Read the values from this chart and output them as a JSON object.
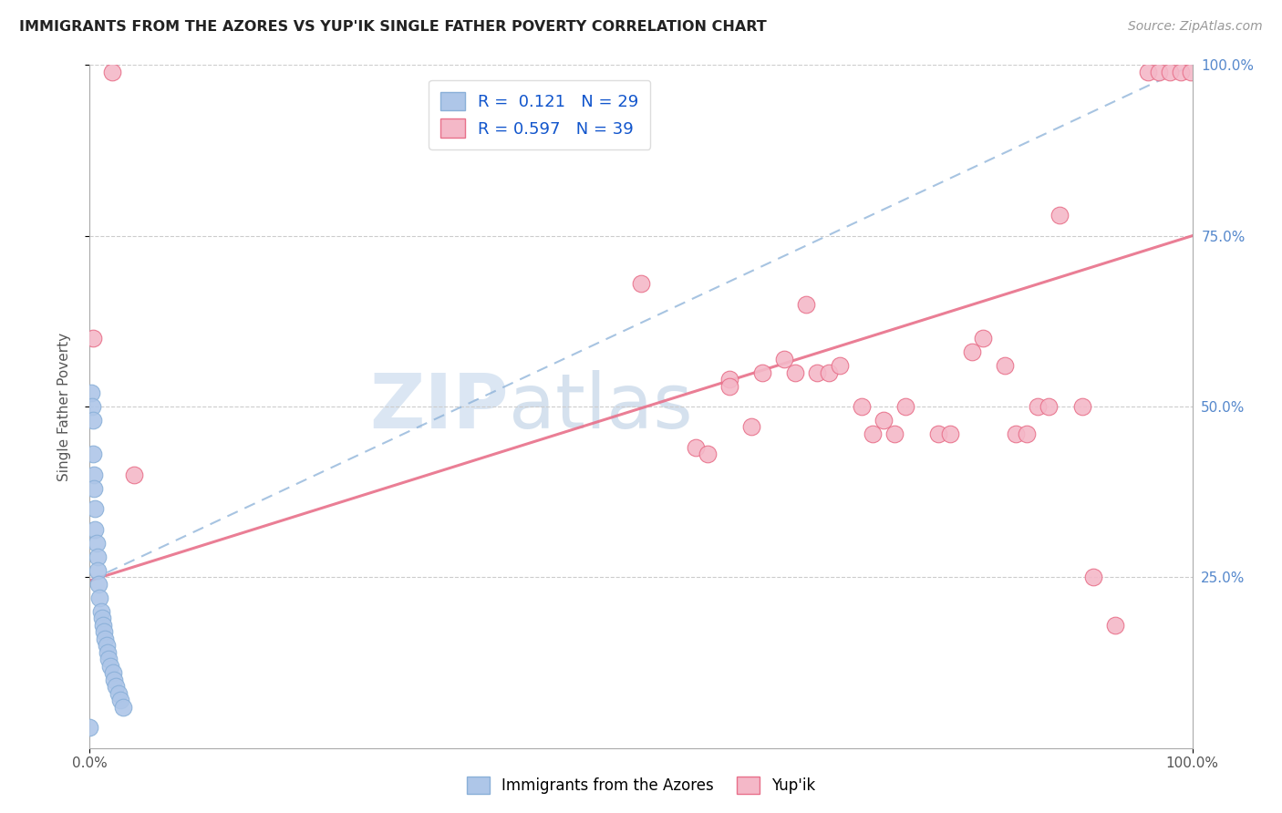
{
  "title": "IMMIGRANTS FROM THE AZORES VS YUP'IK SINGLE FATHER POVERTY CORRELATION CHART",
  "source": "Source: ZipAtlas.com",
  "ylabel": "Single Father Poverty",
  "xlim": [
    0,
    1.0
  ],
  "ylim": [
    0,
    1.0
  ],
  "legend_r1": "R =  0.121",
  "legend_n1": "N = 29",
  "legend_r2": "R = 0.597",
  "legend_n2": "N = 39",
  "color_blue": "#aec6e8",
  "color_pink": "#f4b8c8",
  "trendline_blue_color": "#8ab0d8",
  "trendline_pink_color": "#e8708a",
  "watermark_zip": "ZIP",
  "watermark_atlas": "atlas",
  "blue_points": [
    [
      0.001,
      0.52
    ],
    [
      0.002,
      0.5
    ],
    [
      0.003,
      0.48
    ],
    [
      0.003,
      0.43
    ],
    [
      0.004,
      0.4
    ],
    [
      0.004,
      0.38
    ],
    [
      0.005,
      0.35
    ],
    [
      0.005,
      0.32
    ],
    [
      0.006,
      0.3
    ],
    [
      0.007,
      0.28
    ],
    [
      0.007,
      0.26
    ],
    [
      0.008,
      0.24
    ],
    [
      0.009,
      0.22
    ],
    [
      0.01,
      0.2
    ],
    [
      0.011,
      0.19
    ],
    [
      0.012,
      0.18
    ],
    [
      0.013,
      0.17
    ],
    [
      0.014,
      0.16
    ],
    [
      0.015,
      0.15
    ],
    [
      0.016,
      0.14
    ],
    [
      0.017,
      0.13
    ],
    [
      0.019,
      0.12
    ],
    [
      0.021,
      0.11
    ],
    [
      0.022,
      0.1
    ],
    [
      0.024,
      0.09
    ],
    [
      0.026,
      0.08
    ],
    [
      0.028,
      0.07
    ],
    [
      0.03,
      0.06
    ],
    [
      0.0,
      0.03
    ]
  ],
  "pink_points": [
    [
      0.02,
      0.99
    ],
    [
      0.003,
      0.6
    ],
    [
      0.04,
      0.4
    ],
    [
      0.5,
      0.68
    ],
    [
      0.55,
      0.44
    ],
    [
      0.56,
      0.43
    ],
    [
      0.58,
      0.54
    ],
    [
      0.58,
      0.53
    ],
    [
      0.6,
      0.47
    ],
    [
      0.61,
      0.55
    ],
    [
      0.63,
      0.57
    ],
    [
      0.64,
      0.55
    ],
    [
      0.65,
      0.65
    ],
    [
      0.66,
      0.55
    ],
    [
      0.67,
      0.55
    ],
    [
      0.68,
      0.56
    ],
    [
      0.7,
      0.5
    ],
    [
      0.71,
      0.46
    ],
    [
      0.72,
      0.48
    ],
    [
      0.73,
      0.46
    ],
    [
      0.74,
      0.5
    ],
    [
      0.77,
      0.46
    ],
    [
      0.78,
      0.46
    ],
    [
      0.8,
      0.58
    ],
    [
      0.81,
      0.6
    ],
    [
      0.83,
      0.56
    ],
    [
      0.84,
      0.46
    ],
    [
      0.85,
      0.46
    ],
    [
      0.86,
      0.5
    ],
    [
      0.87,
      0.5
    ],
    [
      0.88,
      0.78
    ],
    [
      0.9,
      0.5
    ],
    [
      0.91,
      0.25
    ],
    [
      0.93,
      0.18
    ],
    [
      0.96,
      0.99
    ],
    [
      0.97,
      0.99
    ],
    [
      0.98,
      0.99
    ],
    [
      0.99,
      0.99
    ],
    [
      0.999,
      0.99
    ]
  ]
}
